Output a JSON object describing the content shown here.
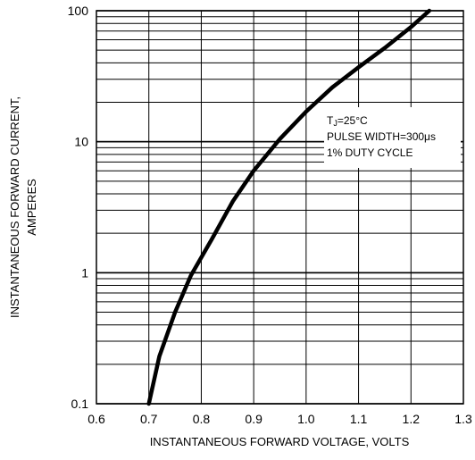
{
  "chart_data": {
    "type": "line",
    "xlabel": "INSTANTANEOUS FORWARD VOLTAGE, VOLTS",
    "ylabel_line1": "INSTANTANEOUS FORWARD CURRENT,",
    "ylabel_line2": "AMPERES",
    "xlim": [
      0.6,
      1.3
    ],
    "ylim": [
      0.1,
      100
    ],
    "y_scale": "log",
    "grid": true,
    "x_ticks": [
      "0.6",
      "0.7",
      "0.8",
      "0.9",
      "1.0",
      "1.1",
      "1.2",
      "1.3"
    ],
    "y_ticks": [
      "0.1",
      "1",
      "10",
      "100"
    ],
    "series": [
      {
        "x": [
          0.7,
          0.72,
          0.75,
          0.78,
          0.82,
          0.86,
          0.9,
          0.95,
          1.0,
          1.05,
          1.1,
          1.15,
          1.2,
          1.235
        ],
        "y": [
          0.1,
          0.23,
          0.5,
          0.95,
          1.8,
          3.5,
          6.0,
          10.5,
          17,
          26,
          37,
          52,
          75,
          100
        ]
      }
    ],
    "annotation": {
      "line1_main": "T",
      "line1_sub": "J",
      "line1_rest": "=25°C",
      "line2": "PULSE WIDTH=300μs",
      "line3": "1% DUTY CYCLE"
    }
  }
}
